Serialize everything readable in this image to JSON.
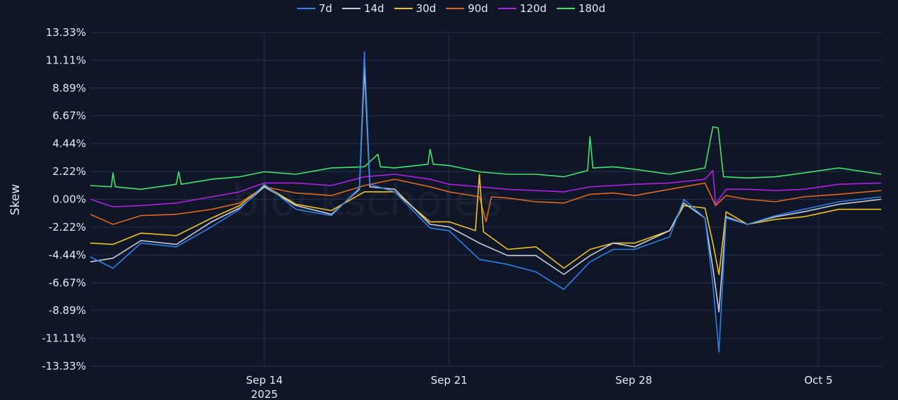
{
  "watermark": "blockscholes",
  "chart_data": {
    "type": "line",
    "title": "",
    "xlabel": "",
    "ylabel": "Skew",
    "x_unit": "day of Sep 2025 (days beyond 30 continue into Oct)",
    "xlim": [
      7.4,
      37.4
    ],
    "ylim": [
      -13.33,
      13.33
    ],
    "yticks": [
      -13.33,
      -11.11,
      -8.89,
      -6.67,
      -4.44,
      -2.22,
      0,
      2.22,
      4.44,
      6.67,
      8.89,
      11.11,
      13.33
    ],
    "ytick_labels": [
      "-13.33%",
      "-11.11%",
      "-8.89%",
      "-6.67%",
      "-4.44%",
      "-2.22%",
      "0.00%",
      "2.22%",
      "4.44%",
      "6.67%",
      "8.89%",
      "11.11%",
      "13.33%"
    ],
    "xticks": [
      14,
      21,
      28,
      35
    ],
    "xtick_labels": [
      "Sep 14",
      "Sep 21",
      "Sep 28",
      "Oct 5"
    ],
    "xtick_sublabel": "2025",
    "grid": true,
    "legend_position": "top-center",
    "series": [
      {
        "name": "7d",
        "color": "#2f7fe8",
        "points": [
          [
            7.4,
            -4.6
          ],
          [
            8.26,
            -5.5
          ],
          [
            9.32,
            -3.5
          ],
          [
            10.66,
            -3.8
          ],
          [
            12.0,
            -2.2
          ],
          [
            13.06,
            -0.8
          ],
          [
            14.0,
            1.2
          ],
          [
            15.2,
            -0.8
          ],
          [
            16.54,
            -1.3
          ],
          [
            17.6,
            0.9
          ],
          [
            17.79,
            11.8
          ],
          [
            18.0,
            1.2
          ],
          [
            18.94,
            0.6
          ],
          [
            20.28,
            -2.3
          ],
          [
            21.0,
            -2.5
          ],
          [
            22.15,
            -4.8
          ],
          [
            23.22,
            -5.2
          ],
          [
            24.29,
            -5.8
          ],
          [
            25.35,
            -7.2
          ],
          [
            26.34,
            -5.0
          ],
          [
            27.22,
            -4.0
          ],
          [
            28.03,
            -4.0
          ],
          [
            29.36,
            -3.0
          ],
          [
            29.9,
            0.0
          ],
          [
            30.7,
            -1.5
          ],
          [
            31.0,
            -6.8
          ],
          [
            31.23,
            -12.2
          ],
          [
            31.5,
            -1.5
          ],
          [
            32.3,
            -2.0
          ],
          [
            33.37,
            -1.3
          ],
          [
            34.44,
            -0.8
          ],
          [
            35.77,
            -0.2
          ],
          [
            37.38,
            0.2
          ]
        ]
      },
      {
        "name": "14d",
        "color": "#c9ccd6",
        "points": [
          [
            7.4,
            -5.0
          ],
          [
            8.26,
            -4.7
          ],
          [
            9.32,
            -3.3
          ],
          [
            10.66,
            -3.6
          ],
          [
            12.0,
            -1.8
          ],
          [
            13.06,
            -0.7
          ],
          [
            14.0,
            1.0
          ],
          [
            15.2,
            -0.5
          ],
          [
            16.54,
            -1.2
          ],
          [
            17.6,
            0.8
          ],
          [
            17.79,
            10.5
          ],
          [
            18.0,
            1.0
          ],
          [
            18.94,
            0.8
          ],
          [
            20.28,
            -2.0
          ],
          [
            21.0,
            -2.2
          ],
          [
            22.15,
            -3.5
          ],
          [
            23.22,
            -4.5
          ],
          [
            24.29,
            -4.5
          ],
          [
            25.35,
            -6.0
          ],
          [
            26.34,
            -4.5
          ],
          [
            27.22,
            -3.5
          ],
          [
            28.03,
            -3.8
          ],
          [
            29.36,
            -2.5
          ],
          [
            29.9,
            -0.3
          ],
          [
            30.7,
            -1.5
          ],
          [
            31.0,
            -5.5
          ],
          [
            31.23,
            -9.0
          ],
          [
            31.5,
            -1.4
          ],
          [
            32.3,
            -2.0
          ],
          [
            33.37,
            -1.4
          ],
          [
            34.44,
            -1.0
          ],
          [
            35.77,
            -0.4
          ],
          [
            37.38,
            0.0
          ]
        ]
      },
      {
        "name": "30d",
        "color": "#f2c21b",
        "points": [
          [
            7.4,
            -3.5
          ],
          [
            8.26,
            -3.6
          ],
          [
            9.32,
            -2.7
          ],
          [
            10.66,
            -2.9
          ],
          [
            12.0,
            -1.5
          ],
          [
            13.06,
            -0.5
          ],
          [
            14.0,
            1.1
          ],
          [
            15.2,
            -0.4
          ],
          [
            16.54,
            -0.9
          ],
          [
            17.79,
            0.6
          ],
          [
            18.94,
            0.6
          ],
          [
            20.28,
            -1.8
          ],
          [
            21.0,
            -1.8
          ],
          [
            22.0,
            -2.5
          ],
          [
            22.15,
            2.0
          ],
          [
            22.3,
            -2.6
          ],
          [
            23.22,
            -4.0
          ],
          [
            24.29,
            -3.8
          ],
          [
            25.35,
            -5.5
          ],
          [
            26.34,
            -4.0
          ],
          [
            27.22,
            -3.5
          ],
          [
            28.03,
            -3.5
          ],
          [
            29.36,
            -2.5
          ],
          [
            29.9,
            -0.5
          ],
          [
            30.7,
            -0.7
          ],
          [
            31.0,
            -3.5
          ],
          [
            31.23,
            -6.0
          ],
          [
            31.5,
            -1.0
          ],
          [
            32.3,
            -2.0
          ],
          [
            33.37,
            -1.6
          ],
          [
            34.44,
            -1.4
          ],
          [
            35.77,
            -0.8
          ],
          [
            37.38,
            -0.8
          ]
        ]
      },
      {
        "name": "90d",
        "color": "#e0661c",
        "points": [
          [
            7.4,
            -1.2
          ],
          [
            8.26,
            -2.0
          ],
          [
            9.32,
            -1.3
          ],
          [
            10.66,
            -1.2
          ],
          [
            12.0,
            -0.8
          ],
          [
            13.06,
            -0.3
          ],
          [
            14.0,
            1.0
          ],
          [
            15.2,
            0.5
          ],
          [
            16.54,
            0.3
          ],
          [
            17.79,
            1.1
          ],
          [
            18.94,
            1.6
          ],
          [
            20.28,
            1.0
          ],
          [
            21.0,
            0.6
          ],
          [
            22.15,
            0.2
          ],
          [
            22.4,
            -1.8
          ],
          [
            22.6,
            0.2
          ],
          [
            23.22,
            0.1
          ],
          [
            24.29,
            -0.2
          ],
          [
            25.35,
            -0.3
          ],
          [
            26.34,
            0.4
          ],
          [
            27.22,
            0.5
          ],
          [
            28.03,
            0.3
          ],
          [
            29.36,
            0.8
          ],
          [
            30.7,
            1.3
          ],
          [
            31.1,
            -0.5
          ],
          [
            31.5,
            0.3
          ],
          [
            32.3,
            0.0
          ],
          [
            33.37,
            -0.2
          ],
          [
            34.44,
            0.2
          ],
          [
            35.77,
            0.4
          ],
          [
            37.38,
            0.7
          ]
        ]
      },
      {
        "name": "120d",
        "color": "#b41ee8",
        "points": [
          [
            7.4,
            0.0
          ],
          [
            8.26,
            -0.6
          ],
          [
            9.32,
            -0.5
          ],
          [
            10.66,
            -0.3
          ],
          [
            12.0,
            0.2
          ],
          [
            13.06,
            0.6
          ],
          [
            14.0,
            1.3
          ],
          [
            15.2,
            1.3
          ],
          [
            16.54,
            1.1
          ],
          [
            17.79,
            1.8
          ],
          [
            18.94,
            2.0
          ],
          [
            20.28,
            1.6
          ],
          [
            21.0,
            1.2
          ],
          [
            22.15,
            1.0
          ],
          [
            23.22,
            0.8
          ],
          [
            24.29,
            0.7
          ],
          [
            25.35,
            0.6
          ],
          [
            26.34,
            1.0
          ],
          [
            27.22,
            1.1
          ],
          [
            28.03,
            1.2
          ],
          [
            29.36,
            1.3
          ],
          [
            30.7,
            1.6
          ],
          [
            31.0,
            2.3
          ],
          [
            31.1,
            -0.4
          ],
          [
            31.5,
            0.8
          ],
          [
            32.3,
            0.8
          ],
          [
            33.37,
            0.7
          ],
          [
            34.44,
            0.8
          ],
          [
            35.77,
            1.2
          ],
          [
            37.38,
            1.3
          ]
        ]
      },
      {
        "name": "180d",
        "color": "#3fe46c",
        "points": [
          [
            7.4,
            1.1
          ],
          [
            8.2,
            1.0
          ],
          [
            8.26,
            2.1
          ],
          [
            8.35,
            1.0
          ],
          [
            9.32,
            0.8
          ],
          [
            10.66,
            1.2
          ],
          [
            10.75,
            2.2
          ],
          [
            10.85,
            1.2
          ],
          [
            12.0,
            1.6
          ],
          [
            13.06,
            1.8
          ],
          [
            14.0,
            2.2
          ],
          [
            15.2,
            2.0
          ],
          [
            16.54,
            2.5
          ],
          [
            17.79,
            2.6
          ],
          [
            18.3,
            3.6
          ],
          [
            18.4,
            2.6
          ],
          [
            18.94,
            2.5
          ],
          [
            20.2,
            2.8
          ],
          [
            20.28,
            4.0
          ],
          [
            20.4,
            2.8
          ],
          [
            21.0,
            2.7
          ],
          [
            22.15,
            2.2
          ],
          [
            23.22,
            2.0
          ],
          [
            24.29,
            2.0
          ],
          [
            25.35,
            1.8
          ],
          [
            26.25,
            2.3
          ],
          [
            26.34,
            5.0
          ],
          [
            26.45,
            2.5
          ],
          [
            27.22,
            2.6
          ],
          [
            28.03,
            2.4
          ],
          [
            29.36,
            2.0
          ],
          [
            30.7,
            2.5
          ],
          [
            31.0,
            5.8
          ],
          [
            31.2,
            5.7
          ],
          [
            31.4,
            1.8
          ],
          [
            32.3,
            1.7
          ],
          [
            33.37,
            1.8
          ],
          [
            34.44,
            2.1
          ],
          [
            35.77,
            2.5
          ],
          [
            37.38,
            2.0
          ]
        ]
      }
    ]
  }
}
